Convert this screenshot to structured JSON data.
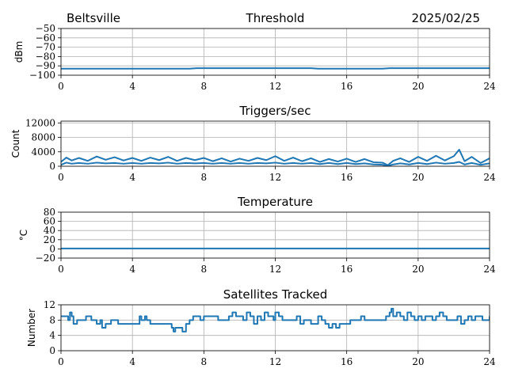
{
  "header": {
    "station": "Beltsville",
    "date": "2025/02/25"
  },
  "style": {
    "series_color": "#1f77b4",
    "grid_color": "#b0b0b0"
  },
  "chart_data": [
    {
      "type": "line",
      "title": "Threshold",
      "ylabel": "dBm",
      "xlim": [
        0,
        24
      ],
      "ylim": [
        -100,
        -50
      ],
      "xticks": [
        0,
        4,
        8,
        12,
        16,
        20,
        24
      ],
      "yticks": [
        -100,
        -90,
        -80,
        -70,
        -60,
        -50
      ],
      "ytick_labels": [
        "−100",
        "−90",
        "−80",
        "−70",
        "−60",
        "−50"
      ],
      "grid": true,
      "series": [
        {
          "x": [
            0,
            2,
            4,
            6,
            7.2,
            7.6,
            8,
            9,
            10,
            11,
            12,
            13,
            14,
            14.4,
            15,
            16,
            17,
            18,
            18.4,
            19,
            20,
            21,
            22,
            23,
            24
          ],
          "y": [
            -93,
            -93,
            -93,
            -93,
            -93,
            -92.5,
            -92.5,
            -92.5,
            -92.5,
            -92.5,
            -92.5,
            -92.5,
            -92.5,
            -93,
            -93,
            -93,
            -93,
            -93,
            -92.5,
            -92.5,
            -92.5,
            -92.5,
            -92.5,
            -92.5,
            -92.5
          ]
        }
      ]
    },
    {
      "type": "line",
      "title": "Triggers/sec",
      "ylabel": "Count",
      "xlim": [
        0,
        24
      ],
      "ylim": [
        0,
        12500
      ],
      "xticks": [
        0,
        4,
        8,
        12,
        16,
        20,
        24
      ],
      "yticks": [
        0,
        4000,
        8000,
        12000
      ],
      "ytick_labels": [
        "0",
        "4000",
        "8000",
        "12000"
      ],
      "grid": true,
      "series": [
        {
          "x": [
            0,
            0.3,
            0.6,
            1,
            1.5,
            2,
            2.5,
            3,
            3.5,
            4,
            4.5,
            5,
            5.5,
            6,
            6.5,
            7,
            7.5,
            8,
            8.5,
            9,
            9.5,
            10,
            10.5,
            11,
            11.5,
            12,
            12.5,
            13,
            13.5,
            14,
            14.5,
            15,
            15.5,
            16,
            16.5,
            17,
            17.5,
            18,
            18.3,
            18.6,
            19,
            19.5,
            20,
            20.5,
            21,
            21.5,
            22,
            22.3,
            22.6,
            23,
            23.5,
            24
          ],
          "y": [
            1200,
            2400,
            1600,
            2300,
            1500,
            2700,
            1800,
            2500,
            1600,
            2300,
            1500,
            2400,
            1700,
            2600,
            1500,
            2300,
            1700,
            2300,
            1400,
            2200,
            1300,
            2100,
            1500,
            2300,
            1700,
            2800,
            1500,
            2400,
            1400,
            2200,
            1200,
            2000,
            1300,
            2100,
            1200,
            2000,
            1100,
            1000,
            300,
            1500,
            2200,
            1200,
            2600,
            1500,
            2900,
            1600,
            2800,
            4600,
            1400,
            2600,
            900,
            2200
          ]
        },
        {
          "x": [
            0,
            0.3,
            0.6,
            1,
            1.5,
            2,
            2.5,
            3,
            3.5,
            4,
            4.5,
            5,
            5.5,
            6,
            6.5,
            7,
            7.5,
            8,
            8.5,
            9,
            9.5,
            10,
            10.5,
            11,
            11.5,
            12,
            12.5,
            13,
            13.5,
            14,
            14.5,
            15,
            15.5,
            16,
            16.5,
            17,
            17.5,
            18,
            18.3,
            18.6,
            19,
            19.5,
            20,
            20.5,
            21,
            21.5,
            22,
            22.3,
            22.6,
            23,
            23.5,
            24
          ],
          "y": [
            400,
            1000,
            700,
            900,
            700,
            1000,
            800,
            900,
            700,
            900,
            700,
            900,
            800,
            1000,
            700,
            900,
            800,
            900,
            700,
            900,
            700,
            900,
            700,
            900,
            800,
            1000,
            700,
            900,
            700,
            900,
            600,
            900,
            600,
            900,
            600,
            800,
            500,
            400,
            100,
            500,
            800,
            500,
            900,
            600,
            1000,
            700,
            900,
            1200,
            500,
            900,
            400,
            800
          ]
        }
      ]
    },
    {
      "type": "line",
      "title": "Temperature",
      "ylabel": "°C",
      "xlim": [
        0,
        24
      ],
      "ylim": [
        -20,
        80
      ],
      "xticks": [
        0,
        4,
        8,
        12,
        16,
        20,
        24
      ],
      "yticks": [
        -20,
        0,
        20,
        40,
        60,
        80
      ],
      "ytick_labels": [
        "−20",
        "0",
        "20",
        "40",
        "60",
        "80"
      ],
      "grid": true,
      "series": [
        {
          "x": [
            0,
            24
          ],
          "y": [
            1,
            1
          ]
        }
      ]
    },
    {
      "type": "line",
      "title": "Satellites Tracked",
      "ylabel": "Number",
      "xlim": [
        0,
        24
      ],
      "ylim": [
        0,
        12
      ],
      "xticks": [
        0,
        4,
        8,
        12,
        16,
        20,
        24
      ],
      "yticks": [
        0,
        4,
        8,
        12
      ],
      "ytick_labels": [
        "0",
        "4",
        "8",
        "12"
      ],
      "grid": true,
      "series": [
        {
          "x": [
            0,
            0.4,
            0.5,
            0.6,
            0.7,
            0.9,
            1.0,
            1.4,
            1.7,
            2.0,
            2.2,
            2.3,
            2.5,
            2.8,
            3.0,
            3.2,
            3.4,
            3.5,
            4.4,
            4.5,
            4.7,
            4.8,
            5.0,
            5.1,
            5.4,
            5.7,
            6.0,
            6.2,
            6.3,
            6.4,
            6.5,
            6.8,
            7.0,
            7.2,
            7.4,
            7.8,
            8.0,
            8.6,
            8.8,
            9.4,
            9.6,
            9.8,
            10.2,
            10.4,
            10.6,
            10.8,
            11.0,
            11.2,
            11.4,
            11.6,
            11.9,
            12.0,
            12.2,
            12.4,
            12.6,
            13.0,
            13.2,
            13.4,
            13.6,
            13.8,
            14.0,
            14.4,
            14.6,
            14.8,
            15.0,
            15.2,
            15.4,
            15.6,
            15.9,
            16.2,
            16.6,
            16.8,
            17.0,
            17.2,
            17.6,
            17.9,
            18.2,
            18.4,
            18.5,
            18.6,
            18.8,
            19.0,
            19.2,
            19.4,
            19.6,
            19.8,
            20.0,
            20.2,
            20.4,
            20.8,
            21.0,
            21.2,
            21.4,
            21.6,
            21.8,
            22.0,
            22.2,
            22.4,
            22.6,
            22.8,
            23.0,
            23.2,
            23.4,
            23.6,
            23.8,
            24
          ],
          "y": [
            9,
            8,
            10,
            9,
            7,
            8,
            8,
            9,
            8,
            7,
            8,
            6,
            7,
            8,
            8,
            7,
            7,
            7,
            9,
            8,
            9,
            8,
            7,
            7,
            7,
            7,
            7,
            6,
            5,
            6,
            6,
            5,
            7,
            8,
            9,
            8,
            9,
            9,
            8,
            9,
            10,
            9,
            8,
            10,
            9,
            7,
            9,
            8,
            10,
            9,
            8,
            10,
            9,
            8,
            8,
            8,
            9,
            7,
            8,
            8,
            7,
            9,
            8,
            7,
            6,
            7,
            6,
            7,
            7,
            8,
            8,
            9,
            8,
            8,
            8,
            8,
            9,
            10,
            11,
            9,
            10,
            9,
            8,
            10,
            9,
            8,
            9,
            8,
            9,
            8,
            9,
            10,
            9,
            8,
            8,
            8,
            9,
            7,
            8,
            9,
            8,
            9,
            9,
            8,
            8,
            9
          ]
        }
      ]
    }
  ]
}
